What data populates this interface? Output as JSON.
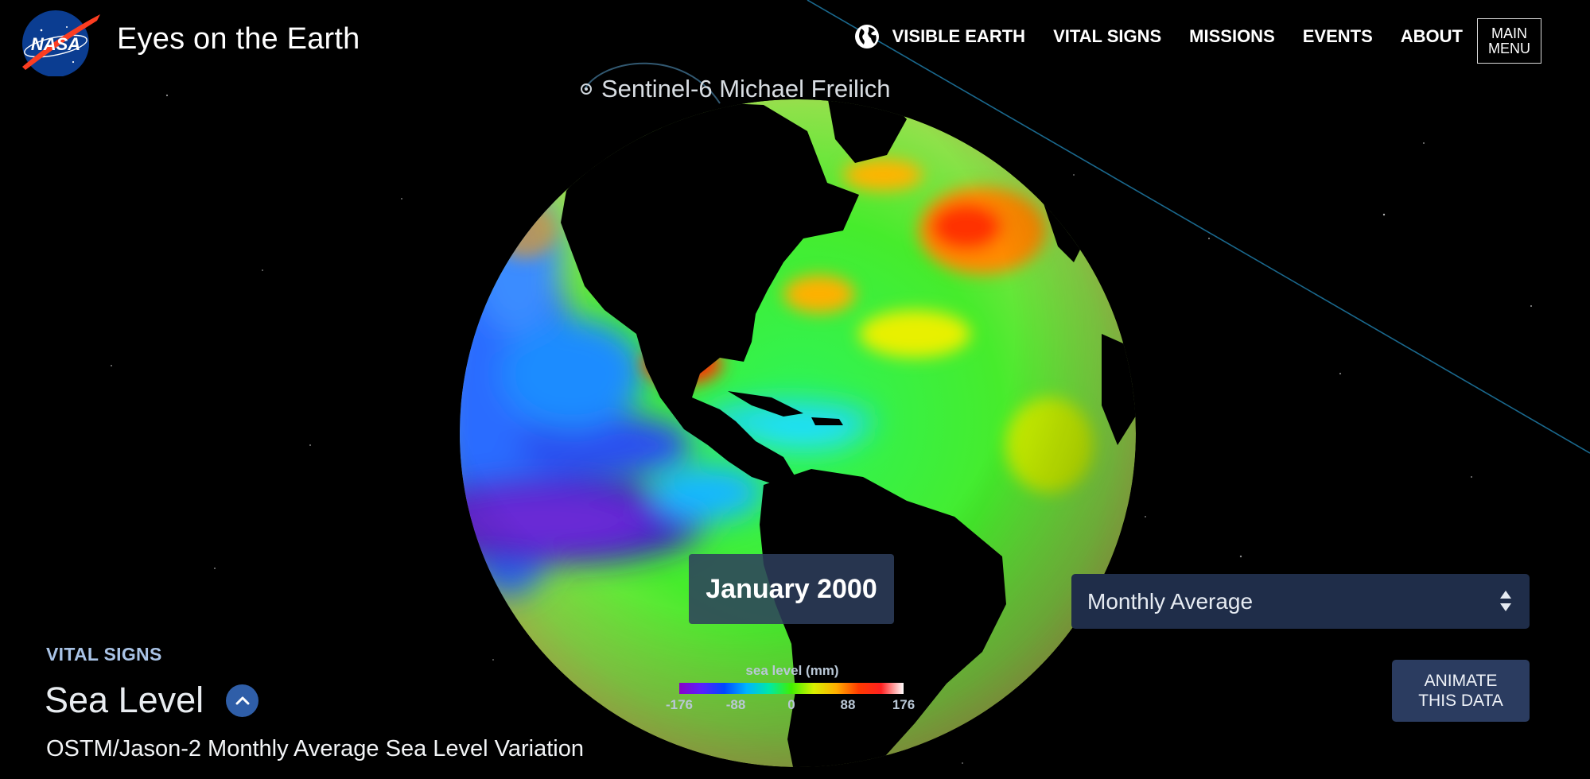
{
  "header": {
    "brand_title": "Eyes on the Earth",
    "logo_text": "NASA",
    "nav": [
      {
        "label": "VISIBLE EARTH",
        "icon": "globe-icon"
      },
      {
        "label": "VITAL SIGNS"
      },
      {
        "label": "MISSIONS"
      },
      {
        "label": "EVENTS"
      },
      {
        "label": "ABOUT"
      }
    ],
    "main_menu": "MAIN MENU"
  },
  "scene": {
    "satellite_label": "Sentinel-6 Michael Freilich",
    "date": "January 2000"
  },
  "controls": {
    "average_select": "Monthly Average",
    "animate_button": "ANIMATE THIS DATA"
  },
  "legend": {
    "title": "sea level (mm)",
    "ticks": [
      "-176",
      "-88",
      "0",
      "88",
      "176"
    ]
  },
  "info": {
    "section": "VITAL SIGNS",
    "title": "Sea Level",
    "subtitle": "OSTM/Jason-2 Monthly Average Sea Level Variation"
  },
  "colors": {
    "background": "#000000",
    "panel": "#1f2d49",
    "accent": "#2f5ea8",
    "section_label": "#a9c3e6"
  }
}
